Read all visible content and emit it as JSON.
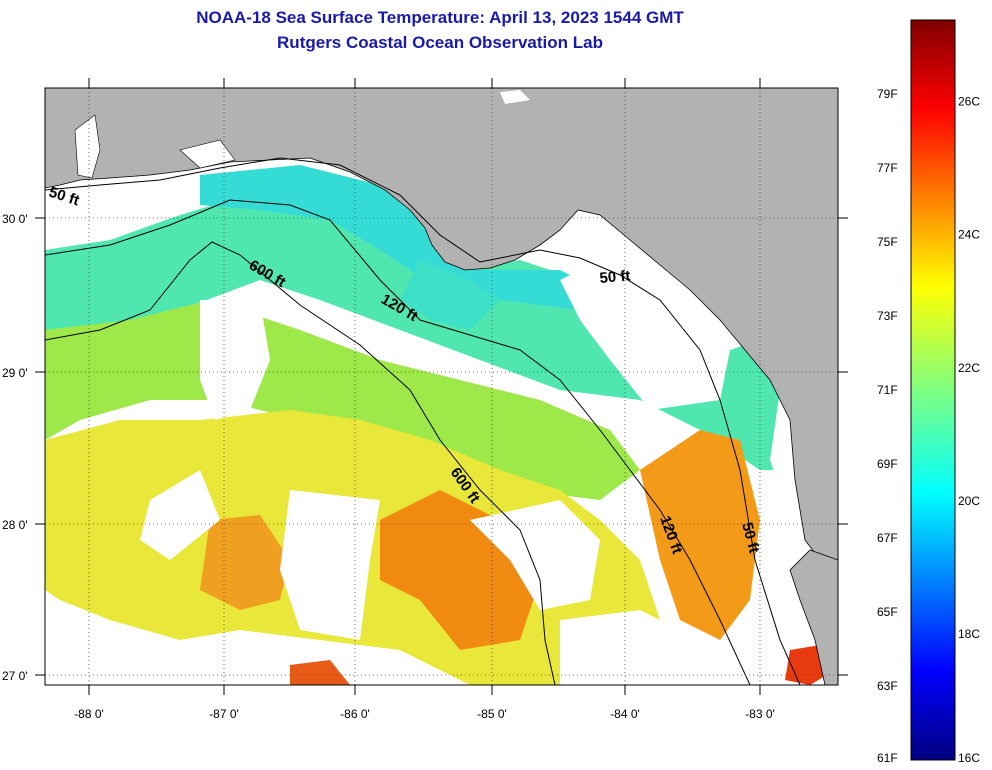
{
  "header": {
    "title_line1": "NOAA-18 Sea Surface Temperature:  April 13, 2023 1544 GMT",
    "title_line2": "Rutgers Coastal Ocean Observation Lab"
  },
  "map": {
    "lon_ticks": [
      "-88 0'",
      "-87 0'",
      "-86 0'",
      "-85 0'",
      "-84 0'",
      "-83 0'"
    ],
    "lat_ticks": [
      "30 0'",
      "29 0'",
      "28 0'",
      "27 0'"
    ],
    "contours": [
      {
        "depth": "50 ft",
        "label_text": "50 ft"
      },
      {
        "depth": "120 ft",
        "label_text": "120 ft"
      },
      {
        "depth": "600 ft",
        "label_text": "600 ft"
      }
    ],
    "contour_labels": [
      "50 ft",
      "600 ft",
      "120 ft",
      "50 ft",
      "600 ft",
      "120 ft",
      "50 ft"
    ],
    "colors": {
      "land": "#b2b2b2",
      "cloud": "#ffffff",
      "ocean_cool": "#3de8c0",
      "ocean_warm": "#f08a10"
    }
  },
  "colorbar": {
    "fahrenheit": [
      "79F",
      "77F",
      "75F",
      "73F",
      "71F",
      "69F",
      "67F",
      "65F",
      "63F",
      "61F"
    ],
    "celsius": [
      "26C",
      "24C",
      "22C",
      "20C",
      "18C",
      "16C"
    ],
    "range_f": [
      61,
      81
    ]
  }
}
